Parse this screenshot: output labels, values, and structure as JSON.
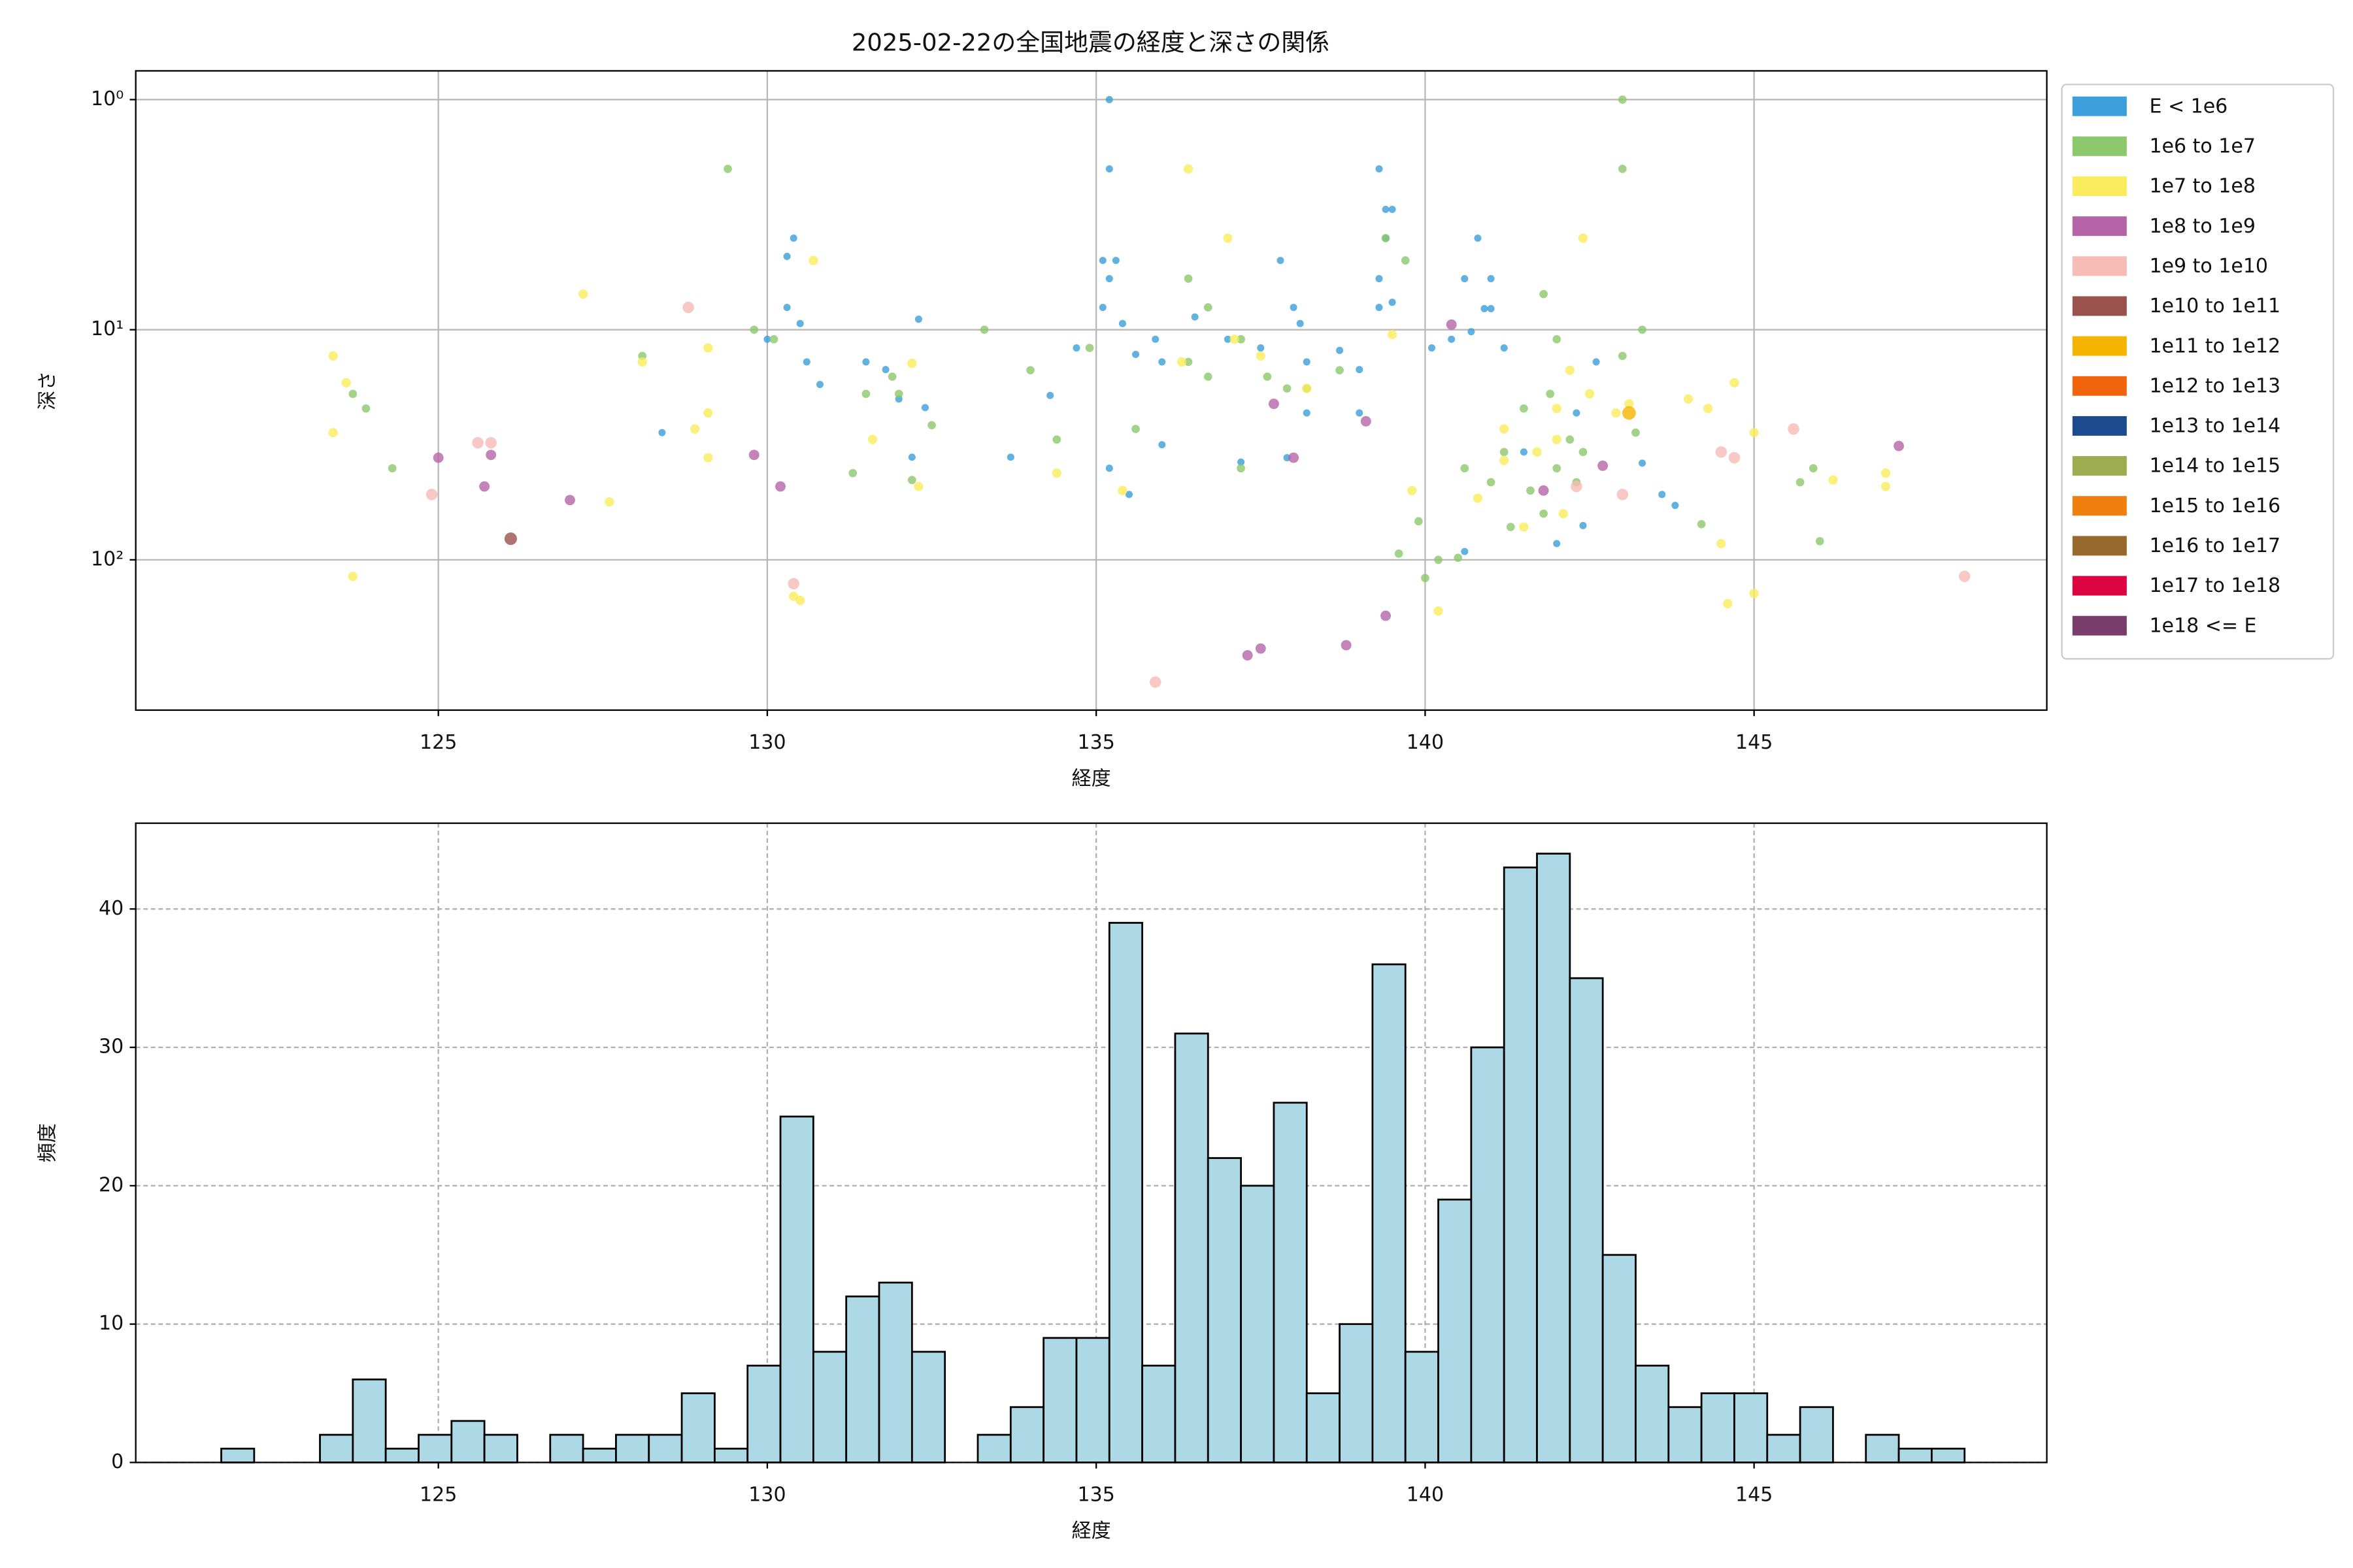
{
  "chart_data": [
    {
      "type": "scatter",
      "title": "2025-02-22の全国地震の経度と深さの関係",
      "x_label": "経度",
      "y_label": "深さ",
      "xlim": [
        120.4,
        149.45
      ],
      "xticks": [
        125,
        130,
        135,
        140,
        145
      ],
      "ylim": [
        0.75,
        450
      ],
      "y_scale": "log",
      "y_inverted": true,
      "yticks": [
        {
          "value": 1,
          "label": "10⁰"
        },
        {
          "value": 10,
          "label": "10¹"
        },
        {
          "value": 100,
          "label": "10²"
        }
      ],
      "grid": true,
      "legend": "outside right",
      "series": [
        {
          "name": "E < 1e6",
          "color": "#3a9fda",
          "x": [
            135.2,
            135.2,
            130.4,
            130.3,
            139.3,
            139.4,
            139.5,
            139.4,
            140.8,
            141.0,
            140.6,
            140.9,
            141.0,
            135.1,
            135.3,
            135.2,
            135.1,
            135.4,
            135.6,
            135.9,
            136.0,
            136.5,
            137.0,
            137.5,
            137.8,
            138.0,
            138.1,
            138.2,
            138.7,
            139.0,
            139.3,
            139.3,
            139.5,
            140.1,
            140.4,
            140.7,
            141.2,
            130.0,
            130.3,
            130.5,
            130.6,
            130.8,
            131.5,
            131.8,
            132.0,
            132.2,
            132.4,
            132.3,
            128.4,
            133.7,
            134.3,
            134.7,
            135.2,
            135.5,
            136.0,
            137.2,
            137.9,
            138.2,
            139.0,
            141.5,
            142.3,
            142.6,
            143.3,
            143.6,
            143.8,
            140.6,
            142.0,
            142.4
          ],
          "y": [
            1,
            2,
            4,
            4.8,
            2,
            3,
            3,
            4,
            4,
            6,
            6,
            8.1,
            8.1,
            5,
            5,
            6,
            8,
            9.4,
            12.8,
            11,
            13.8,
            8.8,
            11,
            12,
            5,
            8,
            9.4,
            13.8,
            12.3,
            14.9,
            6,
            8,
            7.6,
            12,
            11,
            10.2,
            12,
            11,
            8,
            9.4,
            13.8,
            17.3,
            13.8,
            14.9,
            20,
            35.8,
            21.8,
            9,
            28,
            35.8,
            19.3,
            12,
            40,
            52,
            31.6,
            37.6,
            36,
            23,
            23,
            34,
            23,
            13.8,
            38,
            52,
            58,
            92,
            85,
            71
          ]
        },
        {
          "name": "1e6 to 1e7",
          "color": "#8cc86c",
          "x": [
            129.4,
            143.0,
            143.0,
            139.4,
            139.7,
            136.4,
            136.7,
            137.2,
            137.6,
            137.9,
            141.8,
            142.0,
            143.3,
            143.0,
            123.7,
            123.9,
            124.3,
            128.1,
            129.8,
            130.1,
            131.5,
            131.9,
            132.0,
            132.5,
            131.3,
            132.2,
            133.3,
            134.0,
            134.4,
            134.9,
            135.6,
            136.4,
            136.7,
            137.2,
            138.2,
            138.7,
            139.6,
            139.9,
            140.0,
            140.2,
            140.5,
            140.6,
            141.0,
            141.2,
            141.3,
            141.6,
            141.8,
            142.0,
            142.2,
            142.3,
            141.5,
            141.9,
            142.4,
            143.2,
            144.2,
            146.0,
            145.7,
            145.9
          ],
          "y": [
            2,
            1,
            2,
            4,
            5,
            6,
            8,
            11,
            16,
            18,
            7,
            11,
            10,
            13,
            19,
            22,
            40,
            13,
            10,
            11,
            19,
            16,
            19,
            26,
            42,
            45,
            10,
            15,
            30,
            12,
            27,
            13.8,
            16,
            40,
            18,
            15,
            94,
            68,
            120,
            100,
            98,
            40,
            46,
            34,
            72,
            50,
            63,
            40,
            30,
            46,
            22,
            19,
            34,
            28,
            70,
            83,
            46,
            40
          ]
        },
        {
          "name": "1e7 to 1e8",
          "color": "#fbec5d",
          "x": [
            123.4,
            123.6,
            123.4,
            123.7,
            127.2,
            127.6,
            128.1,
            128.9,
            129.1,
            129.1,
            129.1,
            130.7,
            132.2,
            131.6,
            132.3,
            130.4,
            130.5,
            134.4,
            136.4,
            137.0,
            137.1,
            137.5,
            135.4,
            136.3,
            138.2,
            139.5,
            139.8,
            140.2,
            140.8,
            141.2,
            141.7,
            141.2,
            142.4,
            142.2,
            142.5,
            142.0,
            142.0,
            142.1,
            142.9,
            143.1,
            144.0,
            144.3,
            144.5,
            144.7,
            145.0,
            144.6,
            145.0,
            146.2,
            147.0,
            147.0,
            141.5
          ],
          "y": [
            13,
            17,
            28,
            118,
            7,
            56,
            13.8,
            27,
            23,
            36,
            12,
            5,
            14,
            30,
            48,
            144,
            150,
            42,
            2,
            4,
            11,
            13,
            50,
            13.8,
            18,
            10.5,
            50,
            167,
            54,
            37,
            34,
            27,
            4,
            15,
            19,
            22,
            30,
            63,
            23,
            21,
            20,
            22,
            85,
            17,
            28,
            155,
            140,
            45,
            42,
            48,
            72
          ]
        },
        {
          "name": "1e8 to 1e9",
          "color": "#b565a7",
          "x": [
            125.0,
            125.7,
            125.8,
            127.0,
            129.8,
            130.2,
            137.7,
            138.0,
            139.1,
            139.4,
            138.8,
            137.3,
            137.5,
            140.4,
            141.8,
            142.7,
            147.2
          ],
          "y": [
            36,
            48,
            35,
            55,
            35,
            48,
            21,
            36,
            25,
            175,
            235,
            260,
            243,
            9.5,
            50,
            39,
            32
          ]
        },
        {
          "name": "1e9 to 1e10",
          "color": "#f6bcb5",
          "x": [
            128.8,
            124.9,
            125.6,
            125.8,
            130.4,
            135.9,
            143.0,
            144.5,
            144.7,
            145.6,
            148.2,
            142.3
          ],
          "y": [
            8,
            52,
            31,
            31,
            127,
            340,
            52,
            34,
            36,
            27,
            118,
            48
          ]
        },
        {
          "name": "1e10 to 1e11",
          "color": "#9a524c",
          "x": [
            126.1
          ],
          "y": [
            81
          ]
        },
        {
          "name": "1e11 to 1e12",
          "color": "#f5b400",
          "x": [
            143.1
          ],
          "y": [
            23
          ]
        },
        {
          "name": "1e12 to 1e13",
          "color": "#f1640c",
          "x": [],
          "y": []
        },
        {
          "name": "1e13 to 1e14",
          "color": "#1b4a8f",
          "x": [],
          "y": []
        },
        {
          "name": "1e14 to 1e15",
          "color": "#9dac4e",
          "x": [],
          "y": []
        },
        {
          "name": "1e15 to 1e16",
          "color": "#ef7f0e",
          "x": [],
          "y": []
        },
        {
          "name": "1e16 to 1e17",
          "color": "#98692c",
          "x": [],
          "y": []
        },
        {
          "name": "1e17 to 1e18",
          "color": "#dd0441",
          "x": [],
          "y": []
        },
        {
          "name": "1e18 <= E",
          "color": "#7a3d6b",
          "x": [],
          "y": []
        }
      ]
    },
    {
      "type": "histogram",
      "x_label": "経度",
      "y_label": "頻度",
      "color": "#add8e6",
      "edge_color": "#000000",
      "xlim": [
        120.4,
        149.45
      ],
      "xticks": [
        125,
        130,
        135,
        140,
        145
      ],
      "ylim": [
        0,
        46.2
      ],
      "yticks": [
        0,
        10,
        20,
        30,
        40
      ],
      "grid": true,
      "grid_style": "dashed",
      "bins": [
        121.7,
        122.2,
        122.7,
        123.2,
        123.7,
        124.2,
        124.7,
        125.2,
        125.7,
        126.2,
        126.7,
        127.2,
        127.7,
        128.2,
        128.7,
        129.2,
        129.7,
        130.2,
        130.7,
        131.2,
        131.7,
        132.2,
        132.7,
        133.2,
        133.7,
        134.2,
        134.7,
        135.2,
        135.7,
        136.2,
        136.7,
        137.2,
        137.7,
        138.2,
        138.7,
        139.2,
        139.7,
        140.2,
        140.7,
        141.2,
        141.7,
        142.2,
        142.7,
        143.2,
        143.7,
        144.2,
        144.7,
        145.2,
        145.7,
        146.2,
        146.7,
        147.2,
        147.7,
        148.2
      ],
      "values": [
        1,
        0,
        0,
        2,
        6,
        1,
        2,
        3,
        2,
        0,
        2,
        1,
        2,
        2,
        5,
        1,
        7,
        25,
        8,
        12,
        13,
        8,
        0,
        2,
        4,
        9,
        9,
        39,
        7,
        31,
        22,
        20,
        26,
        5,
        10,
        36,
        8,
        19,
        30,
        43,
        44,
        35,
        15,
        7,
        4,
        5,
        5,
        2,
        4,
        0,
        2,
        1,
        1
      ]
    }
  ]
}
